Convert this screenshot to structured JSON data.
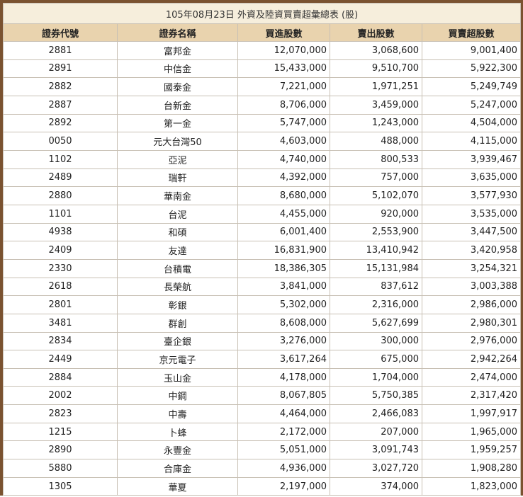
{
  "table": {
    "title": "105年08月23日 外資及陸資買賣超彙總表 (股)",
    "header": [
      "證券代號",
      "證券名稱",
      "買進股數",
      "賣出股數",
      "買賣超股數"
    ],
    "rows": [
      [
        "2881",
        "富邦金",
        "12,070,000",
        "3,068,600",
        "9,001,400"
      ],
      [
        "2891",
        "中信金",
        "15,433,000",
        "9,510,700",
        "5,922,300"
      ],
      [
        "2882",
        "國泰金",
        "7,221,000",
        "1,971,251",
        "5,249,749"
      ],
      [
        "2887",
        "台新金",
        "8,706,000",
        "3,459,000",
        "5,247,000"
      ],
      [
        "2892",
        "第一金",
        "5,747,000",
        "1,243,000",
        "4,504,000"
      ],
      [
        "0050",
        "元大台灣50",
        "4,603,000",
        "488,000",
        "4,115,000"
      ],
      [
        "1102",
        "亞泥",
        "4,740,000",
        "800,533",
        "3,939,467"
      ],
      [
        "2489",
        "瑞軒",
        "4,392,000",
        "757,000",
        "3,635,000"
      ],
      [
        "2880",
        "華南金",
        "8,680,000",
        "5,102,070",
        "3,577,930"
      ],
      [
        "1101",
        "台泥",
        "4,455,000",
        "920,000",
        "3,535,000"
      ],
      [
        "4938",
        "和碩",
        "6,001,400",
        "2,553,900",
        "3,447,500"
      ],
      [
        "2409",
        "友達",
        "16,831,900",
        "13,410,942",
        "3,420,958"
      ],
      [
        "2330",
        "台積電",
        "18,386,305",
        "15,131,984",
        "3,254,321"
      ],
      [
        "2618",
        "長榮航",
        "3,841,000",
        "837,612",
        "3,003,388"
      ],
      [
        "2801",
        "彰銀",
        "5,302,000",
        "2,316,000",
        "2,986,000"
      ],
      [
        "3481",
        "群創",
        "8,608,000",
        "5,627,699",
        "2,980,301"
      ],
      [
        "2834",
        "臺企銀",
        "3,276,000",
        "300,000",
        "2,976,000"
      ],
      [
        "2449",
        "京元電子",
        "3,617,264",
        "675,000",
        "2,942,264"
      ],
      [
        "2884",
        "玉山金",
        "4,178,000",
        "1,704,000",
        "2,474,000"
      ],
      [
        "2002",
        "中鋼",
        "8,067,805",
        "5,750,385",
        "2,317,420"
      ],
      [
        "2823",
        "中壽",
        "4,464,000",
        "2,466,083",
        "1,997,917"
      ],
      [
        "1215",
        "卜蜂",
        "2,172,000",
        "207,000",
        "1,965,000"
      ],
      [
        "2890",
        "永豐金",
        "5,051,000",
        "3,091,743",
        "1,959,257"
      ],
      [
        "5880",
        "合庫金",
        "4,936,000",
        "3,027,720",
        "1,908,280"
      ],
      [
        "1305",
        "華夏",
        "2,197,000",
        "374,000",
        "1,823,000"
      ]
    ]
  }
}
